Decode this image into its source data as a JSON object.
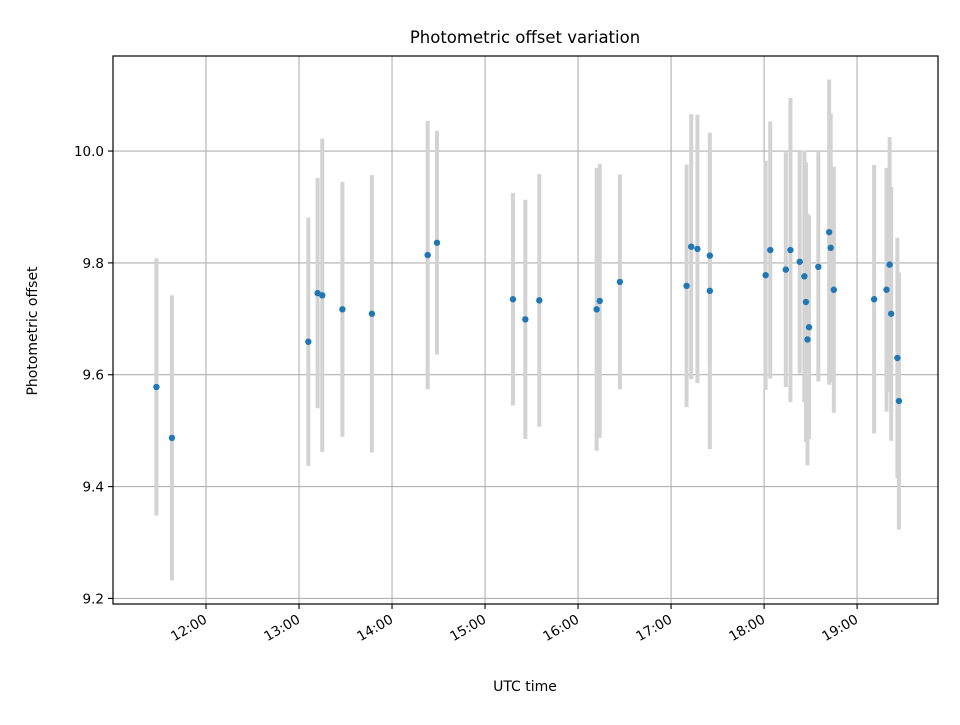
{
  "chart_data": {
    "type": "scatter",
    "title": "Photometric offset variation",
    "xlabel": "UTC time",
    "ylabel": "Photometric offset",
    "x_tick_labels": [
      "12:00",
      "13:00",
      "14:00",
      "15:00",
      "16:00",
      "17:00",
      "18:00",
      "19:00"
    ],
    "y_tick_labels": [
      "9.2",
      "9.4",
      "9.6",
      "9.8",
      "10.0"
    ],
    "x_ticks_hours": [
      12,
      13,
      14,
      15,
      16,
      17,
      18,
      19
    ],
    "y_ticks": [
      9.2,
      9.4,
      9.6,
      9.8,
      10.0
    ],
    "xlim_hours": [
      11.0,
      19.87
    ],
    "ylim": [
      9.19,
      10.17
    ],
    "grid": true,
    "colors": {
      "marker": "#1f77b4",
      "errorbar": "#d3d3d3",
      "grid": "#b0b0b0"
    },
    "points": [
      {
        "t": "11:28",
        "y": 9.578,
        "err": 0.23
      },
      {
        "t": "11:38",
        "y": 9.487,
        "err": 0.255
      },
      {
        "t": "13:06",
        "y": 9.659,
        "err": 0.222
      },
      {
        "t": "13:12",
        "y": 9.746,
        "err": 0.206
      },
      {
        "t": "13:15",
        "y": 9.742,
        "err": 0.28
      },
      {
        "t": "13:28",
        "y": 9.717,
        "err": 0.228
      },
      {
        "t": "13:47",
        "y": 9.709,
        "err": 0.248
      },
      {
        "t": "14:23",
        "y": 9.814,
        "err": 0.24
      },
      {
        "t": "14:29",
        "y": 9.836,
        "err": 0.2
      },
      {
        "t": "15:18",
        "y": 9.735,
        "err": 0.19
      },
      {
        "t": "15:26",
        "y": 9.699,
        "err": 0.214
      },
      {
        "t": "15:35",
        "y": 9.733,
        "err": 0.226
      },
      {
        "t": "16:12",
        "y": 9.717,
        "err": 0.253
      },
      {
        "t": "16:14",
        "y": 9.732,
        "err": 0.245
      },
      {
        "t": "16:27",
        "y": 9.766,
        "err": 0.192
      },
      {
        "t": "17:10",
        "y": 9.759,
        "err": 0.217
      },
      {
        "t": "17:13",
        "y": 9.829,
        "err": 0.237
      },
      {
        "t": "17:17",
        "y": 9.825,
        "err": 0.24
      },
      {
        "t": "17:25",
        "y": 9.813,
        "err": 0.19
      },
      {
        "t": "17:25",
        "y": 9.75,
        "err": 0.283
      },
      {
        "t": "18:01",
        "y": 9.778,
        "err": 0.205
      },
      {
        "t": "18:04",
        "y": 9.823,
        "err": 0.23
      },
      {
        "t": "18:14",
        "y": 9.788,
        "err": 0.21
      },
      {
        "t": "18:17",
        "y": 9.823,
        "err": 0.272
      },
      {
        "t": "18:23",
        "y": 9.802,
        "err": 0.2
      },
      {
        "t": "18:26",
        "y": 9.776,
        "err": 0.225
      },
      {
        "t": "18:27",
        "y": 9.73,
        "err": 0.25
      },
      {
        "t": "18:28",
        "y": 9.663,
        "err": 0.225
      },
      {
        "t": "18:29",
        "y": 9.685,
        "err": 0.2
      },
      {
        "t": "18:35",
        "y": 9.793,
        "err": 0.205
      },
      {
        "t": "18:42",
        "y": 9.855,
        "err": 0.273
      },
      {
        "t": "18:43",
        "y": 9.827,
        "err": 0.24
      },
      {
        "t": "18:45",
        "y": 9.752,
        "err": 0.22
      },
      {
        "t": "19:11",
        "y": 9.735,
        "err": 0.24
      },
      {
        "t": "19:19",
        "y": 9.752,
        "err": 0.218
      },
      {
        "t": "19:21",
        "y": 9.797,
        "err": 0.228
      },
      {
        "t": "19:22",
        "y": 9.709,
        "err": 0.227
      },
      {
        "t": "19:26",
        "y": 9.63,
        "err": 0.215
      },
      {
        "t": "19:27",
        "y": 9.553,
        "err": 0.23
      }
    ]
  }
}
